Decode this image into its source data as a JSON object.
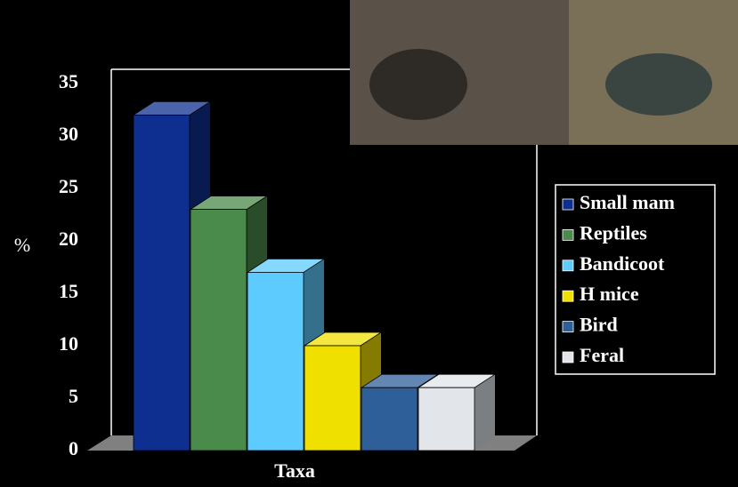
{
  "chart_data": {
    "type": "bar3d",
    "x_label": "Taxa",
    "y_label": "%",
    "categories": [
      null
    ],
    "series": [
      {
        "name": "Small mam",
        "color": "#0e2f8f",
        "values": [
          32
        ]
      },
      {
        "name": "Reptiles",
        "color": "#4a8a4a",
        "values": [
          23
        ]
      },
      {
        "name": "Bandicoot",
        "color": "#5ecbff",
        "values": [
          17
        ]
      },
      {
        "name": "H mice",
        "color": "#f0e000",
        "values": [
          10
        ]
      },
      {
        "name": "Bird",
        "color": "#2f5f98",
        "values": [
          6
        ]
      },
      {
        "name": "Feral",
        "color": "#e2e6ea",
        "values": [
          6
        ]
      }
    ],
    "ylim": [
      0,
      35
    ],
    "yticks": [
      0,
      5,
      10,
      15,
      20,
      25,
      30,
      35
    ],
    "legend": "right"
  }
}
